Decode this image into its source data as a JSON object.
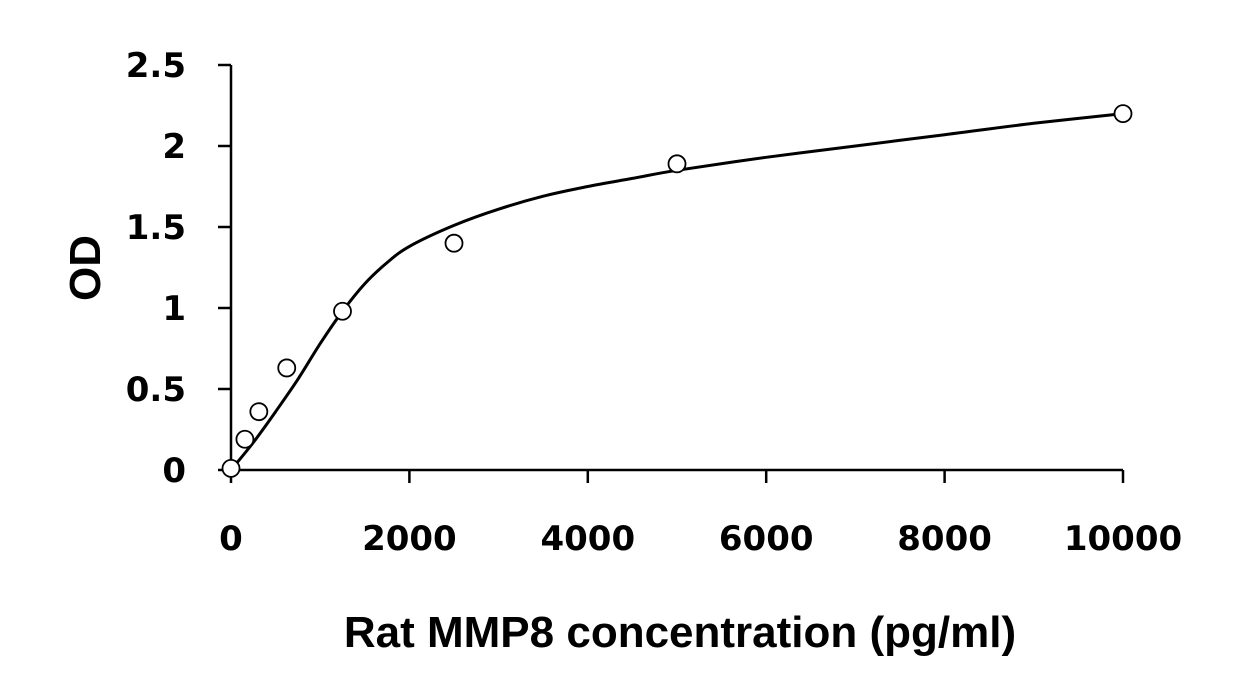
{
  "chart_data": {
    "type": "scatter",
    "title": "",
    "xlabel": "Rat MMP8 concentration (pg/ml)",
    "ylabel": "OD",
    "xlim": [
      0,
      10000
    ],
    "ylim": [
      0,
      2.5
    ],
    "x_ticks": [
      "0",
      "2000",
      "4000",
      "6000",
      "8000",
      "10000"
    ],
    "y_ticks": [
      "0",
      "0.5",
      "1",
      "1.5",
      "2",
      "2.5"
    ],
    "grid": false,
    "series": [
      {
        "marker": "open-circle",
        "x": [
          0,
          156,
          312,
          625,
          1250,
          2500,
          5000,
          10000
        ],
        "y": [
          0.01,
          0.19,
          0.36,
          0.63,
          0.98,
          1.4,
          1.89,
          2.2
        ]
      }
    ],
    "fit_curve": {
      "style": "solid-line",
      "x": [
        0,
        250,
        500,
        750,
        1000,
        1250,
        1500,
        1750,
        2000,
        2500,
        3000,
        3500,
        4000,
        4500,
        5000,
        6000,
        7000,
        8000,
        9000,
        10000
      ],
      "y": [
        0.0,
        0.17,
        0.36,
        0.56,
        0.78,
        0.98,
        1.15,
        1.28,
        1.38,
        1.51,
        1.61,
        1.69,
        1.75,
        1.8,
        1.85,
        1.93,
        2.0,
        2.07,
        2.14,
        2.2
      ]
    }
  }
}
